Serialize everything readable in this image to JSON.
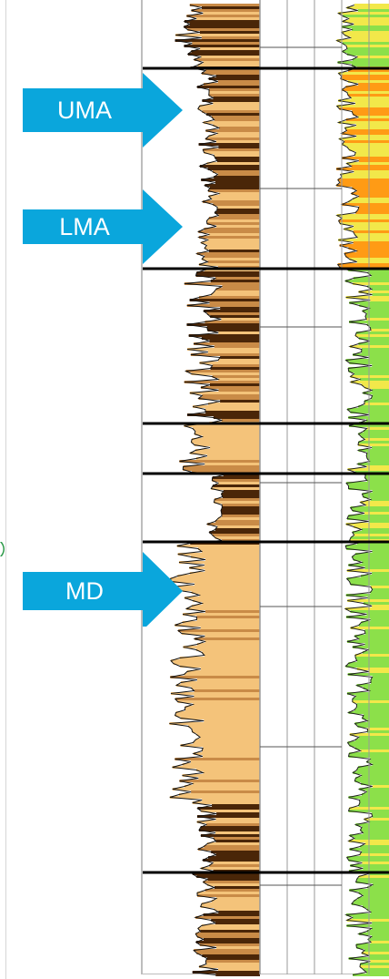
{
  "markers": [
    {
      "label": "UMA",
      "color": "#0aa6dc"
    },
    {
      "label": "LMA",
      "color": "#0aa6dc"
    },
    {
      "label": "MD",
      "color": "#0aa6dc"
    }
  ],
  "colors": {
    "formation_boundary": "#000000",
    "gamma_fill_light": "#f4c37a",
    "gamma_fill_mid": "#c98b47",
    "gamma_fill_dark": "#4a2608",
    "resistivity_fill_low": "#8ce04a",
    "resistivity_fill_mid": "#f2e84a",
    "resistivity_fill_high": "#ff9b15",
    "grid_line": "#9a9a9a"
  },
  "icons": [
    "right-arrow-icon",
    "green-chevron-icon"
  ]
}
